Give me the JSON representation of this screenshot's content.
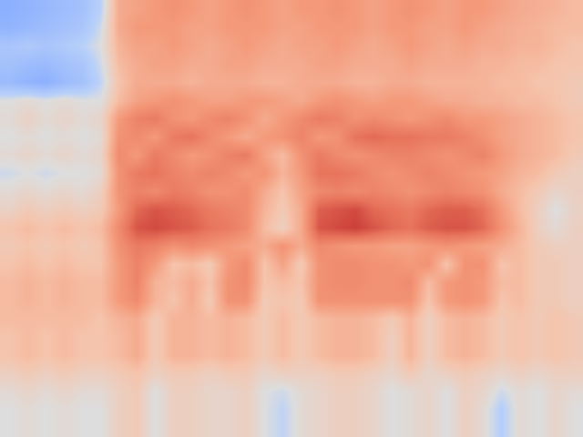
{
  "chart_data": {
    "type": "heatmap",
    "tick_labels": false,
    "zlim": [
      0,
      100
    ],
    "cells": [
      [
        30,
        32,
        34,
        36,
        38,
        45,
        66,
        68,
        70,
        72,
        70,
        68,
        70,
        72,
        70,
        68,
        70,
        70,
        72,
        70,
        68,
        70,
        72,
        70,
        68,
        70,
        70,
        68,
        66,
        65,
        64,
        62
      ],
      [
        32,
        34,
        36,
        38,
        40,
        48,
        66,
        70,
        70,
        70,
        68,
        68,
        70,
        70,
        70,
        68,
        68,
        70,
        70,
        70,
        68,
        70,
        70,
        68,
        68,
        70,
        68,
        66,
        65,
        64,
        62,
        62
      ],
      [
        40,
        42,
        40,
        42,
        45,
        50,
        64,
        68,
        68,
        70,
        68,
        66,
        68,
        70,
        68,
        66,
        68,
        68,
        70,
        68,
        66,
        68,
        70,
        68,
        66,
        68,
        66,
        66,
        64,
        64,
        62,
        60
      ],
      [
        38,
        36,
        35,
        38,
        40,
        48,
        62,
        66,
        68,
        68,
        66,
        66,
        68,
        68,
        66,
        66,
        66,
        68,
        68,
        66,
        66,
        66,
        68,
        66,
        66,
        66,
        64,
        64,
        62,
        62,
        60,
        60
      ],
      [
        35,
        32,
        30,
        35,
        38,
        46,
        60,
        66,
        66,
        66,
        64,
        66,
        66,
        66,
        64,
        64,
        66,
        66,
        66,
        64,
        64,
        66,
        66,
        64,
        64,
        64,
        64,
        62,
        62,
        60,
        60,
        58
      ],
      [
        50,
        52,
        50,
        52,
        50,
        50,
        62,
        68,
        70,
        72,
        70,
        68,
        68,
        70,
        70,
        68,
        66,
        70,
        72,
        70,
        68,
        70,
        70,
        68,
        66,
        66,
        64,
        64,
        62,
        62,
        60,
        58
      ],
      [
        52,
        55,
        52,
        54,
        52,
        54,
        70,
        76,
        78,
        72,
        70,
        74,
        76,
        72,
        66,
        70,
        74,
        78,
        76,
        72,
        74,
        72,
        70,
        72,
        74,
        70,
        70,
        68,
        66,
        64,
        62,
        60
      ],
      [
        50,
        52,
        50,
        52,
        50,
        52,
        72,
        74,
        70,
        78,
        80,
        74,
        70,
        66,
        70,
        72,
        76,
        70,
        72,
        80,
        82,
        80,
        80,
        78,
        78,
        76,
        72,
        68,
        66,
        64,
        62,
        60
      ],
      [
        52,
        54,
        52,
        54,
        52,
        54,
        74,
        70,
        78,
        74,
        70,
        72,
        76,
        78,
        68,
        62,
        72,
        78,
        74,
        72,
        74,
        76,
        76,
        74,
        72,
        74,
        76,
        70,
        66,
        64,
        62,
        58
      ],
      [
        48,
        50,
        48,
        50,
        50,
        52,
        72,
        78,
        80,
        76,
        74,
        76,
        74,
        70,
        72,
        64,
        70,
        80,
        80,
        78,
        74,
        72,
        74,
        76,
        74,
        72,
        70,
        68,
        64,
        62,
        58,
        56
      ],
      [
        52,
        54,
        52,
        54,
        52,
        56,
        72,
        76,
        74,
        78,
        76,
        72,
        72,
        74,
        66,
        60,
        68,
        74,
        76,
        74,
        76,
        74,
        72,
        74,
        76,
        74,
        72,
        66,
        62,
        58,
        54,
        56
      ],
      [
        55,
        58,
        56,
        58,
        56,
        58,
        70,
        82,
        86,
        84,
        82,
        78,
        76,
        74,
        64,
        58,
        66,
        84,
        86,
        88,
        82,
        80,
        78,
        82,
        84,
        84,
        80,
        70,
        62,
        56,
        50,
        55
      ],
      [
        60,
        62,
        60,
        62,
        60,
        62,
        74,
        86,
        88,
        86,
        84,
        80,
        78,
        74,
        62,
        56,
        66,
        86,
        88,
        90,
        86,
        82,
        80,
        84,
        86,
        86,
        82,
        72,
        64,
        56,
        52,
        56
      ],
      [
        58,
        60,
        58,
        60,
        58,
        60,
        72,
        78,
        76,
        72,
        74,
        72,
        70,
        68,
        66,
        72,
        66,
        74,
        72,
        70,
        70,
        68,
        68,
        70,
        72,
        70,
        68,
        66,
        62,
        58,
        56,
        56
      ],
      [
        60,
        62,
        60,
        62,
        60,
        60,
        70,
        76,
        70,
        60,
        62,
        58,
        70,
        74,
        60,
        68,
        58,
        72,
        74,
        74,
        72,
        72,
        70,
        72,
        60,
        72,
        72,
        60,
        62,
        58,
        58,
        56
      ],
      [
        62,
        64,
        62,
        64,
        62,
        62,
        70,
        76,
        64,
        62,
        66,
        60,
        72,
        74,
        60,
        62,
        60,
        72,
        74,
        74,
        72,
        72,
        74,
        62,
        70,
        72,
        70,
        62,
        62,
        58,
        58,
        56
      ],
      [
        62,
        64,
        62,
        64,
        62,
        62,
        70,
        74,
        64,
        60,
        66,
        58,
        72,
        72,
        58,
        60,
        58,
        72,
        72,
        72,
        72,
        72,
        72,
        60,
        70,
        72,
        70,
        60,
        62,
        58,
        58,
        56
      ],
      [
        62,
        62,
        62,
        62,
        62,
        60,
        64,
        66,
        58,
        64,
        64,
        62,
        64,
        62,
        58,
        62,
        58,
        62,
        64,
        64,
        62,
        58,
        64,
        56,
        62,
        64,
        62,
        58,
        60,
        58,
        60,
        58
      ],
      [
        60,
        62,
        60,
        62,
        60,
        60,
        62,
        66,
        58,
        64,
        64,
        62,
        64,
        62,
        58,
        62,
        58,
        62,
        64,
        64,
        62,
        56,
        64,
        56,
        62,
        64,
        62,
        58,
        60,
        58,
        60,
        58
      ],
      [
        60,
        62,
        60,
        62,
        60,
        60,
        62,
        66,
        58,
        64,
        64,
        62,
        64,
        62,
        58,
        62,
        58,
        62,
        64,
        64,
        62,
        56,
        64,
        56,
        62,
        64,
        62,
        58,
        60,
        58,
        60,
        58
      ],
      [
        56,
        58,
        56,
        58,
        56,
        56,
        58,
        60,
        56,
        58,
        58,
        56,
        58,
        58,
        54,
        56,
        56,
        56,
        58,
        58,
        56,
        54,
        58,
        54,
        56,
        58,
        56,
        54,
        56,
        54,
        56,
        56
      ],
      [
        52,
        54,
        52,
        54,
        52,
        52,
        56,
        58,
        50,
        56,
        56,
        54,
        54,
        56,
        50,
        48,
        52,
        54,
        56,
        56,
        54,
        50,
        52,
        54,
        50,
        56,
        54,
        48,
        52,
        50,
        54,
        52
      ],
      [
        50,
        52,
        50,
        52,
        50,
        50,
        56,
        58,
        50,
        56,
        56,
        54,
        54,
        56,
        50,
        46,
        52,
        54,
        56,
        56,
        54,
        50,
        52,
        54,
        50,
        56,
        52,
        44,
        52,
        50,
        54,
        50
      ],
      [
        50,
        52,
        50,
        52,
        50,
        50,
        56,
        58,
        50,
        56,
        56,
        54,
        54,
        56,
        50,
        46,
        52,
        54,
        56,
        56,
        54,
        50,
        52,
        54,
        50,
        56,
        52,
        44,
        52,
        50,
        54,
        50
      ]
    ]
  }
}
